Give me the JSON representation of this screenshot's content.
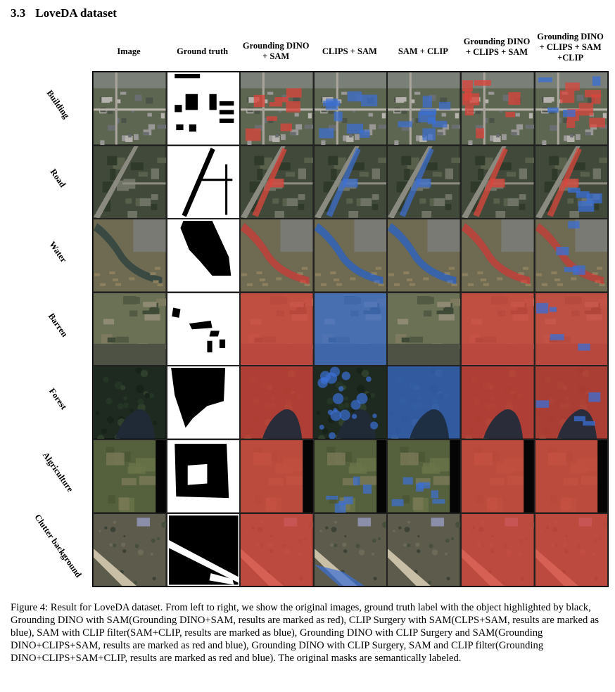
{
  "section": {
    "number": "3.3",
    "title": "LoveDA dataset"
  },
  "columns": [
    {
      "label": "Image"
    },
    {
      "label": "Ground truth"
    },
    {
      "label": "Grounding DINO + SAM"
    },
    {
      "label": "CLIPS + SAM"
    },
    {
      "label": "SAM + CLIP"
    },
    {
      "label": "Grounding DINO + CLIPS + SAM"
    },
    {
      "label": "Grounding DINO + CLIPS + SAM +CLIP"
    }
  ],
  "rows": [
    {
      "label": "Building",
      "scene": "urban",
      "gt": "building",
      "masks": [
        "none",
        "none",
        "red",
        "blue",
        "blue",
        "red",
        "mixed"
      ]
    },
    {
      "label": "Road",
      "scene": "roads",
      "gt": "road",
      "masks": [
        "none",
        "none",
        "red",
        "blue",
        "blue",
        "red",
        "mixed"
      ]
    },
    {
      "label": "Water",
      "scene": "river",
      "gt": "water",
      "masks": [
        "none",
        "none",
        "red",
        "blue",
        "blue",
        "red",
        "mixed"
      ]
    },
    {
      "label": "Barren",
      "scene": "field",
      "gt": "barren",
      "masks": [
        "none",
        "none",
        "red-full",
        "blue-full",
        "none",
        "red-full",
        "mixed-full"
      ]
    },
    {
      "label": "Forest",
      "scene": "forest",
      "gt": "forest",
      "masks": [
        "none",
        "none",
        "red-full",
        "blue-partial",
        "blue-full",
        "red-full",
        "mixed-full"
      ]
    },
    {
      "label": "Algriculture",
      "scene": "farm",
      "gt": "agri",
      "masks": [
        "none",
        "none",
        "red-full",
        "blue",
        "blue",
        "red-full",
        "red-full"
      ]
    },
    {
      "label": "Clutter background",
      "scene": "clutter",
      "gt": "clutter",
      "masks": [
        "none",
        "none",
        "red-full",
        "blue",
        "none",
        "red-full",
        "red-full"
      ]
    }
  ],
  "caption": "Figure 4: Result for LoveDA dataset. From left to right, we show the original images, ground truth label with the object highlighted by black, Grounding DINO with SAM(Grounding DINO+SAM, results are marked as red), CLIP Surgery with SAM(CLPS+SAM, results are marked as blue), SAM with CLIP filter(SAM+CLIP, results are marked as blue), Grounding DINO with CLIP Surgery and SAM(Grounding DINO+CLIPS+SAM, results are marked as red and blue), Grounding DINO with CLIP Surgery, SAM and CLIP filter(Grounding DINO+CLIPS+SAM+CLIP, results are marked as red and blue). The original masks are semantically labeled.",
  "colors": {
    "red_mask": "#d9453c",
    "blue_mask": "#3a6fd6",
    "gt_object": "#000000",
    "gt_background": "#ffffff"
  }
}
